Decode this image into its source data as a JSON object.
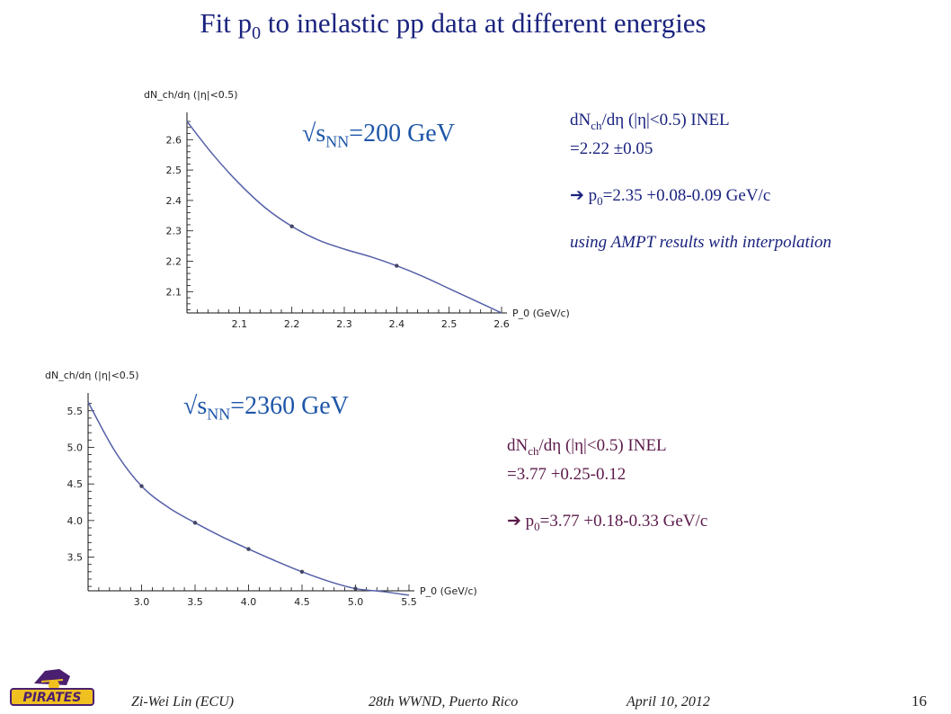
{
  "slide": {
    "title_prefix": "Fit p",
    "title_sub": "0",
    "title_suffix": " to inelastic pp data at different energies",
    "page_number": "16"
  },
  "top_panel": {
    "energy_sqrt": "√",
    "energy_s": "s",
    "energy_sub": "NN",
    "energy_value": "=200 GeV",
    "info_line1_a": "dN",
    "info_line1_sub": "ch",
    "info_line1_b": "/dη (|η|<0.5) INEL",
    "info_line2": "=2.22 ±0.05",
    "info_arrow": "➔",
    "info_line3_a": " p",
    "info_line3_sub": "0",
    "info_line3_b": "=2.35 +0.08-0.09 GeV/c",
    "info_line4": "using AMPT results with interpolation"
  },
  "bottom_panel": {
    "energy_sqrt": "√",
    "energy_s": "s",
    "energy_sub": "NN",
    "energy_value": "=2360 GeV",
    "info_line1_a": "dN",
    "info_line1_sub": "ch",
    "info_line1_b": "/dη (|η|<0.5) INEL",
    "info_line2": "=3.77 +0.25-0.12",
    "info_arrow": "➔",
    "info_line3_a": " p",
    "info_line3_sub": "0",
    "info_line3_b": "=3.77 +0.18-0.33 GeV/c"
  },
  "footer": {
    "author": "Zi-Wei Lin (ECU)",
    "conference": "28th WWND, Puerto Rico",
    "date": "April 10, 2012",
    "logo_text": "PIRATES"
  },
  "colors": {
    "curve": "#5560a8",
    "points": "#444466",
    "axis": "#111111"
  },
  "chart_data": [
    {
      "type": "line",
      "ylabel": "dN_ch/dη (|η|<0.5)",
      "xlabel": "P_0 (GeV/c)",
      "xlim": [
        2.0,
        2.6
      ],
      "ylim": [
        2.03,
        2.66
      ],
      "x_ticks": [
        "2.1",
        "2.2",
        "2.3",
        "2.4",
        "2.5",
        "2.6"
      ],
      "y_ticks": [
        "2.1",
        "2.2",
        "2.3",
        "2.4",
        "2.5",
        "2.6"
      ],
      "curve": {
        "x": [
          2.0,
          2.05,
          2.1,
          2.15,
          2.2,
          2.25,
          2.3,
          2.35,
          2.4,
          2.45,
          2.5,
          2.55,
          2.6
        ],
        "y": [
          2.66,
          2.55,
          2.455,
          2.375,
          2.315,
          2.27,
          2.24,
          2.215,
          2.185,
          2.15,
          2.11,
          2.07,
          2.03
        ]
      },
      "points": {
        "x": [
          2.2,
          2.4
        ],
        "y": [
          2.315,
          2.185
        ]
      }
    },
    {
      "type": "line",
      "ylabel": "dN_ch/dη (|η|<0.5)",
      "xlabel": "P_0 (GeV/c)",
      "xlim": [
        2.5,
        5.5
      ],
      "ylim": [
        3.04,
        5.62
      ],
      "x_ticks": [
        "3.0",
        "3.5",
        "4.0",
        "4.5",
        "5.0",
        "5.5"
      ],
      "y_ticks": [
        "3.5",
        "4.0",
        "4.5",
        "5.0",
        "5.5"
      ],
      "curve": {
        "x": [
          2.5,
          2.75,
          3.0,
          3.25,
          3.5,
          3.75,
          4.0,
          4.25,
          4.5,
          4.75,
          5.0,
          5.25,
          5.5
        ],
        "y": [
          5.62,
          4.95,
          4.47,
          4.18,
          3.97,
          3.78,
          3.61,
          3.45,
          3.3,
          3.17,
          3.07,
          3.03,
          2.98
        ]
      },
      "points": {
        "x": [
          3.0,
          3.5,
          4.0,
          4.5,
          5.0
        ],
        "y": [
          4.47,
          3.97,
          3.61,
          3.3,
          3.07
        ]
      }
    }
  ]
}
